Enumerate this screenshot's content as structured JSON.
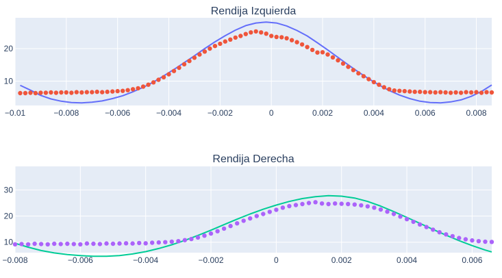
{
  "chart_data": [
    {
      "type": "scatter",
      "title": "Rendija Izquierda",
      "xlabel": "",
      "ylabel": "",
      "xlim": [
        -0.01,
        0.0086
      ],
      "ylim": [
        2.5,
        29.5
      ],
      "x_ticks": [
        -0.01,
        -0.008,
        -0.006,
        -0.004,
        -0.002,
        0,
        0.002,
        0.004,
        0.006,
        0.008
      ],
      "x_tick_labels": [
        "−0.01",
        "−0.008",
        "−0.006",
        "−0.004",
        "−0.002",
        "0",
        "0.002",
        "0.004",
        "0.006",
        "0.008"
      ],
      "y_ticks": [
        10,
        20
      ],
      "y_tick_labels": [
        "10",
        "20"
      ],
      "grid": true,
      "colors": {
        "plot_bg": "#e5ecf6",
        "grid": "#ffffff",
        "markers": "#ef553b",
        "line": "#636efa"
      },
      "series": [
        {
          "mode": "markers",
          "x": [
            -0.0098,
            -0.0096,
            -0.0094,
            -0.0092,
            -0.009,
            -0.0088,
            -0.0086,
            -0.0084,
            -0.0082,
            -0.008,
            -0.0078,
            -0.0076,
            -0.0074,
            -0.0072,
            -0.007,
            -0.0068,
            -0.0066,
            -0.0064,
            -0.0062,
            -0.006,
            -0.0058,
            -0.0056,
            -0.0054,
            -0.0052,
            -0.005,
            -0.0048,
            -0.0046,
            -0.0044,
            -0.0042,
            -0.004,
            -0.0038,
            -0.0036,
            -0.0034,
            -0.0032,
            -0.003,
            -0.0028,
            -0.0026,
            -0.0024,
            -0.0022,
            -0.002,
            -0.0018,
            -0.0016,
            -0.0014,
            -0.0012,
            -0.001,
            -0.0008,
            -0.0006,
            -0.0004,
            -0.0002,
            0,
            0.0002,
            0.0004,
            0.0006,
            0.0008,
            0.001,
            0.0012,
            0.0014,
            0.0016,
            0.0018,
            0.002,
            0.0022,
            0.0024,
            0.0026,
            0.0028,
            0.003,
            0.0032,
            0.0034,
            0.0036,
            0.0038,
            0.004,
            0.0042,
            0.0044,
            0.0046,
            0.0048,
            0.005,
            0.0052,
            0.0054,
            0.0056,
            0.0058,
            0.006,
            0.0062,
            0.0064,
            0.0066,
            0.0068,
            0.007,
            0.0072,
            0.0074,
            0.0076,
            0.0078,
            0.008,
            0.0082,
            0.0084,
            0.0086
          ],
          "y": [
            6.3,
            6.3,
            6.4,
            6.3,
            6.4,
            6.4,
            6.5,
            6.4,
            6.5,
            6.5,
            6.4,
            6.6,
            6.5,
            6.6,
            6.6,
            6.7,
            6.6,
            6.7,
            6.8,
            6.9,
            7.0,
            7.2,
            7.5,
            7.8,
            8.3,
            8.9,
            9.6,
            10.4,
            11.2,
            12.1,
            13.1,
            14.1,
            15.2,
            16.2,
            17.2,
            18.2,
            19.1,
            20.0,
            20.8,
            21.5,
            22.2,
            22.8,
            23.4,
            23.9,
            24.5,
            25.0,
            25.3,
            25.0,
            24.6,
            23.9,
            23.6,
            23.5,
            23.2,
            22.6,
            22.0,
            21.3,
            20.5,
            19.6,
            18.8,
            18.9,
            18.2,
            17.3,
            16.4,
            15.4,
            14.4,
            13.4,
            12.4,
            11.5,
            10.6,
            9.7,
            8.9,
            8.1,
            7.5,
            7.1,
            7.0,
            6.9,
            6.8,
            6.7,
            6.7,
            6.6,
            6.6,
            6.5,
            6.6,
            6.5,
            6.4,
            6.5,
            6.4,
            6.6,
            6.5,
            6.6,
            6.4,
            6.6,
            6.5
          ]
        },
        {
          "mode": "lines",
          "x": [
            -0.0098,
            -0.0094,
            -0.009,
            -0.0086,
            -0.0082,
            -0.0078,
            -0.0074,
            -0.007,
            -0.0066,
            -0.0062,
            -0.0058,
            -0.0054,
            -0.005,
            -0.0046,
            -0.0042,
            -0.0038,
            -0.0034,
            -0.003,
            -0.0026,
            -0.0022,
            -0.0018,
            -0.0014,
            -0.001,
            -0.0006,
            -0.0002,
            0.0002,
            0.0006,
            0.001,
            0.0014,
            0.0018,
            0.0022,
            0.0026,
            0.003,
            0.0034,
            0.0038,
            0.0042,
            0.0046,
            0.005,
            0.0054,
            0.0058,
            0.0062,
            0.0066,
            0.007,
            0.0074,
            0.0078,
            0.0082,
            0.0086
          ],
          "y": [
            8.7,
            7.2,
            5.6,
            4.5,
            3.8,
            3.4,
            3.3,
            3.5,
            3.9,
            4.6,
            5.5,
            6.7,
            8.1,
            9.7,
            11.6,
            13.6,
            15.7,
            17.8,
            20.0,
            22.1,
            24.0,
            25.7,
            27.1,
            27.9,
            28.2,
            27.9,
            27.0,
            25.6,
            23.9,
            21.8,
            19.6,
            17.3,
            15.0,
            12.8,
            10.7,
            8.8,
            7.1,
            5.7,
            4.6,
            3.8,
            3.4,
            3.3,
            3.6,
            4.2,
            5.3,
            6.8,
            8.8
          ]
        }
      ]
    },
    {
      "type": "scatter",
      "title": "Rendija Derecha",
      "xlabel": "",
      "ylabel": "",
      "xlim": [
        -0.008,
        0.0066
      ],
      "ylim": [
        6,
        39
      ],
      "x_ticks": [
        -0.008,
        -0.006,
        -0.004,
        -0.002,
        0,
        0.002,
        0.004,
        0.006
      ],
      "x_tick_labels": [
        "−0.008",
        "−0.006",
        "−0.004",
        "−0.002",
        "0",
        "0.002",
        "0.004",
        "0.006"
      ],
      "y_ticks": [
        10,
        20,
        30
      ],
      "y_tick_labels": [
        "10",
        "20",
        "30"
      ],
      "grid": true,
      "colors": {
        "plot_bg": "#e5ecf6",
        "grid": "#ffffff",
        "markers": "#ab63fa",
        "line": "#00cc96"
      },
      "series": [
        {
          "mode": "markers",
          "x": [
            -0.008,
            -0.0078,
            -0.0076,
            -0.0074,
            -0.0072,
            -0.007,
            -0.0068,
            -0.0066,
            -0.0064,
            -0.0062,
            -0.006,
            -0.0058,
            -0.0056,
            -0.0054,
            -0.0052,
            -0.005,
            -0.0048,
            -0.0046,
            -0.0044,
            -0.0042,
            -0.004,
            -0.0038,
            -0.0036,
            -0.0034,
            -0.0032,
            -0.003,
            -0.0028,
            -0.0026,
            -0.0024,
            -0.0022,
            -0.002,
            -0.0018,
            -0.0016,
            -0.0014,
            -0.0012,
            -0.001,
            -0.0008,
            -0.0006,
            -0.0004,
            -0.0002,
            0,
            0.0002,
            0.0004,
            0.0006,
            0.0008,
            0.001,
            0.0012,
            0.0014,
            0.0016,
            0.0018,
            0.002,
            0.0022,
            0.0024,
            0.0026,
            0.0028,
            0.003,
            0.0032,
            0.0034,
            0.0036,
            0.0038,
            0.004,
            0.0042,
            0.0044,
            0.0046,
            0.0048,
            0.005,
            0.0052,
            0.0054,
            0.0056,
            0.0058,
            0.006,
            0.0062,
            0.0064,
            0.0066
          ],
          "y": [
            9.2,
            9.3,
            9.2,
            9.4,
            9.3,
            9.2,
            9.4,
            9.3,
            9.4,
            9.3,
            9.2,
            9.5,
            9.4,
            9.3,
            9.5,
            9.4,
            9.5,
            9.6,
            9.5,
            9.7,
            9.6,
            9.8,
            9.9,
            10.0,
            10.2,
            10.4,
            10.8,
            11.2,
            11.8,
            12.5,
            13.3,
            14.2,
            15.2,
            16.2,
            17.2,
            18.2,
            19.1,
            20.0,
            20.8,
            21.6,
            22.4,
            23.2,
            23.8,
            24.2,
            24.6,
            25.0,
            25.3,
            24.8,
            24.6,
            24.8,
            24.7,
            24.6,
            24.4,
            24.1,
            23.7,
            23.2,
            22.5,
            21.7,
            20.8,
            19.8,
            18.8,
            17.8,
            16.8,
            15.8,
            14.8,
            13.8,
            13.0,
            12.3,
            11.6,
            11.1,
            10.7,
            10.4,
            10.2,
            10.1
          ]
        },
        {
          "mode": "lines",
          "x": [
            -0.008,
            -0.0076,
            -0.0072,
            -0.0068,
            -0.0064,
            -0.006,
            -0.0056,
            -0.0052,
            -0.0048,
            -0.0044,
            -0.004,
            -0.0036,
            -0.0032,
            -0.0028,
            -0.0024,
            -0.002,
            -0.0016,
            -0.0012,
            -0.0008,
            -0.0004,
            0,
            0.0004,
            0.0008,
            0.0012,
            0.0016,
            0.002,
            0.0024,
            0.0028,
            0.0032,
            0.0036,
            0.004,
            0.0044,
            0.0048,
            0.0052,
            0.0056,
            0.006,
            0.0064,
            0.0066
          ],
          "y": [
            9.6,
            8.1,
            6.8,
            5.9,
            5.3,
            4.9,
            4.6,
            4.6,
            4.9,
            5.5,
            6.4,
            7.6,
            9.0,
            10.7,
            12.6,
            14.6,
            16.7,
            18.8,
            20.8,
            22.6,
            24.2,
            25.6,
            26.7,
            27.4,
            27.8,
            27.6,
            26.9,
            25.6,
            23.8,
            21.7,
            19.5,
            17.2,
            14.9,
            12.7,
            10.6,
            8.7,
            7.0,
            6.3
          ]
        }
      ]
    }
  ]
}
